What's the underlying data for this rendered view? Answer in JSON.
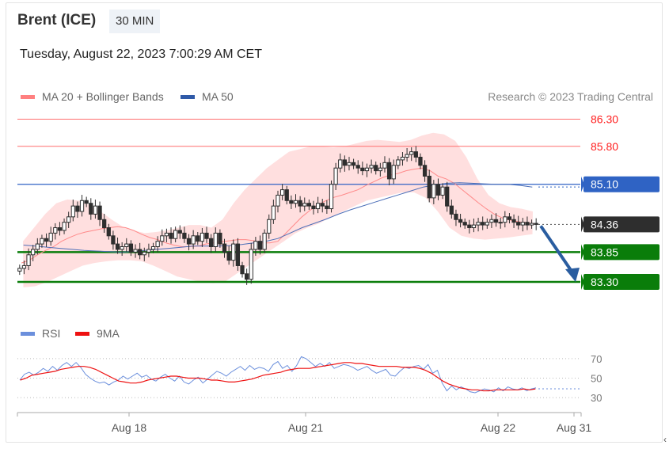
{
  "header": {
    "instrument": "Brent (ICE)",
    "interval": "30 MIN",
    "datetime": "Tuesday, August 22, 2023 7:00:29 AM CET"
  },
  "legend": {
    "ma20_label": "MA 20 + Bollinger Bands",
    "ma50_label": "MA 50",
    "credit": "Research © 2023 Trading Central",
    "rsi_label": "RSI",
    "rsi_ma_label": "9MA"
  },
  "colors": {
    "resistance": "#ff6e6e",
    "ma50": "#2f63c4",
    "support": "#0a7d0a",
    "band": "#ffd4d4",
    "candle": "#2e2e2e",
    "price_tag": "#2e2e2e",
    "arrow": "#2a5da0",
    "rsi": "#6b8fdc",
    "rsi_ma": "#ee1111"
  },
  "chart_data": {
    "type": "candlestick",
    "price_ylim": [
      82.95,
      86.6
    ],
    "levels": [
      {
        "value": 86.3,
        "label": "86.30",
        "kind": "resistance"
      },
      {
        "value": 85.8,
        "label": "85.80",
        "kind": "resistance"
      },
      {
        "value": 85.1,
        "label": "85.10",
        "kind": "ma50-level"
      },
      {
        "value": 84.36,
        "label": "84.36",
        "kind": "last-price"
      },
      {
        "value": 83.85,
        "label": "83.85",
        "kind": "support"
      },
      {
        "value": 83.3,
        "label": "83.30",
        "kind": "support"
      }
    ],
    "x_ticks": [
      "Aug 18",
      "Aug 21",
      "Aug 22",
      "Aug 31"
    ],
    "close": [
      83.55,
      83.6,
      83.8,
      83.9,
      84.0,
      84.1,
      84.05,
      84.2,
      84.3,
      84.25,
      84.4,
      84.5,
      84.7,
      84.6,
      84.8,
      84.75,
      84.55,
      84.7,
      84.45,
      84.3,
      84.15,
      84.0,
      83.9,
      83.95,
      84.0,
      83.85,
      83.9,
      83.8,
      83.85,
      83.9,
      83.95,
      84.05,
      84.15,
      84.2,
      84.1,
      84.25,
      84.2,
      84.1,
      84.0,
      84.15,
      84.05,
      84.2,
      84.1,
      83.95,
      84.2,
      84.0,
      83.85,
      83.7,
      84.0,
      83.6,
      83.45,
      83.35,
      83.9,
      84.05,
      83.9,
      84.2,
      84.45,
      84.7,
      84.9,
      85.0,
      84.8,
      84.75,
      84.8,
      84.7,
      84.75,
      84.7,
      84.65,
      84.75,
      84.7,
      84.65,
      85.1,
      85.4,
      85.55,
      85.45,
      85.5,
      85.45,
      85.4,
      85.35,
      85.4,
      85.45,
      85.35,
      85.4,
      85.5,
      85.2,
      85.45,
      85.55,
      85.6,
      85.65,
      85.7,
      85.6,
      85.45,
      85.25,
      84.85,
      85.1,
      84.9,
      85.05,
      84.7,
      84.55,
      84.45,
      84.4,
      84.35,
      84.3,
      84.35,
      84.4,
      84.35,
      84.4,
      84.45,
      84.4,
      84.4,
      84.5,
      84.45,
      84.4,
      84.35,
      84.4,
      84.35,
      84.38,
      84.36
    ],
    "ma20": [
      83.65,
      83.7,
      83.8,
      83.88,
      83.95,
      84.05,
      84.12,
      84.18,
      84.22,
      84.25,
      84.28,
      84.3,
      84.32,
      84.3,
      84.25,
      84.18,
      84.12,
      84.08,
      84.02,
      83.98,
      83.95,
      83.95,
      83.96,
      84.0,
      84.02,
      84.04,
      84.06,
      84.08,
      84.08,
      84.06,
      84.02,
      84.02,
      84.05,
      84.2,
      84.35,
      84.5,
      84.62,
      84.72,
      84.8,
      84.86,
      84.9,
      84.95,
      85.0,
      85.08,
      85.15,
      85.22,
      85.27,
      85.3,
      85.35,
      85.38,
      85.4,
      85.35,
      85.25,
      85.2,
      85.12,
      85.0,
      84.88,
      84.76,
      84.65,
      84.55,
      84.48,
      84.44,
      84.41,
      84.39,
      84.37
    ],
    "ma50": [
      83.98,
      83.96,
      83.94,
      83.92,
      83.9,
      83.88,
      83.87,
      83.86,
      83.85,
      83.86,
      83.88,
      83.9,
      83.92,
      83.94,
      83.96,
      83.96,
      83.96,
      83.97,
      83.99,
      84.02,
      84.05,
      84.1,
      84.2,
      84.3,
      84.38,
      84.46,
      84.55,
      84.63,
      84.7,
      84.77,
      84.84,
      84.91,
      84.98,
      85.05,
      85.09,
      85.12,
      85.13,
      85.12,
      85.11,
      85.1,
      85.1,
      85.08,
      85.05
    ],
    "bb_upper": [
      84.05,
      84.3,
      84.55,
      84.75,
      84.82,
      84.8,
      84.72,
      84.6,
      84.45,
      84.32,
      84.25,
      84.2,
      84.22,
      84.25,
      84.3,
      84.35,
      84.35,
      84.3,
      84.45,
      84.75,
      85.0,
      85.2,
      85.4,
      85.55,
      85.7,
      85.75,
      85.8,
      85.8,
      85.78,
      85.8,
      85.85,
      85.9,
      85.92,
      85.9,
      85.88,
      85.92,
      86.0,
      86.05,
      86.02,
      85.9,
      85.6,
      85.2,
      84.9,
      84.75,
      84.68,
      84.65,
      84.6
    ],
    "bb_lower": [
      83.2,
      83.22,
      83.3,
      83.4,
      83.5,
      83.6,
      83.65,
      83.68,
      83.7,
      83.7,
      83.68,
      83.6,
      83.5,
      83.4,
      83.35,
      83.3,
      83.28,
      83.3,
      83.45,
      83.6,
      83.75,
      83.9,
      84.05,
      84.2,
      84.3,
      84.38,
      84.5,
      84.6,
      84.7,
      84.8,
      84.85,
      84.9,
      84.95,
      84.95,
      84.85,
      84.6,
      84.3,
      84.15,
      84.1,
      84.08,
      84.1,
      84.12,
      84.15,
      84.18
    ],
    "forecast_arrow": {
      "from": 84.36,
      "to": 83.3
    },
    "rsi_ylim": [
      22,
      78
    ],
    "rsi_ticks": [
      70,
      50,
      30
    ],
    "rsi": [
      48,
      54,
      56,
      53,
      56,
      60,
      57,
      62,
      58,
      63,
      66,
      62,
      66,
      61,
      54,
      50,
      47,
      45,
      46,
      43,
      46,
      48,
      52,
      49,
      52,
      55,
      51,
      53,
      49,
      47,
      51,
      54,
      50,
      47,
      52,
      46,
      44,
      48,
      51,
      45,
      49,
      53,
      57,
      55,
      52,
      56,
      59,
      62,
      58,
      63,
      59,
      61,
      60,
      57,
      64,
      67,
      60,
      63,
      57,
      63,
      72,
      70,
      66,
      62,
      65,
      62,
      66,
      60,
      62,
      64,
      63,
      61,
      58,
      60,
      62,
      58,
      55,
      57,
      59,
      53,
      52,
      57,
      61,
      60,
      62,
      63,
      59,
      64,
      55,
      58,
      45,
      37,
      42,
      38,
      41,
      39,
      36,
      35,
      37,
      39,
      38,
      36,
      40,
      37,
      41,
      39,
      38,
      40,
      37,
      39,
      40
    ],
    "rsi_ma": [
      48,
      50,
      53,
      54,
      55,
      56,
      57,
      59,
      60,
      61,
      62,
      62,
      61,
      59,
      56,
      53,
      50,
      47,
      46,
      45,
      45,
      46,
      48,
      49,
      50,
      51,
      52,
      52,
      51,
      50,
      50,
      50,
      49,
      48,
      48,
      47,
      46,
      46,
      47,
      48,
      49,
      51,
      53,
      54,
      55,
      56,
      58,
      59,
      60,
      60,
      60,
      61,
      62,
      63,
      64,
      65,
      66,
      66,
      65,
      65,
      64,
      63,
      62,
      62,
      62,
      62,
      61,
      61,
      61,
      60,
      58,
      55,
      51,
      47,
      44,
      42,
      40,
      39,
      38,
      38,
      37,
      37,
      38,
      38,
      38,
      38,
      38,
      39,
      38,
      39
    ]
  }
}
